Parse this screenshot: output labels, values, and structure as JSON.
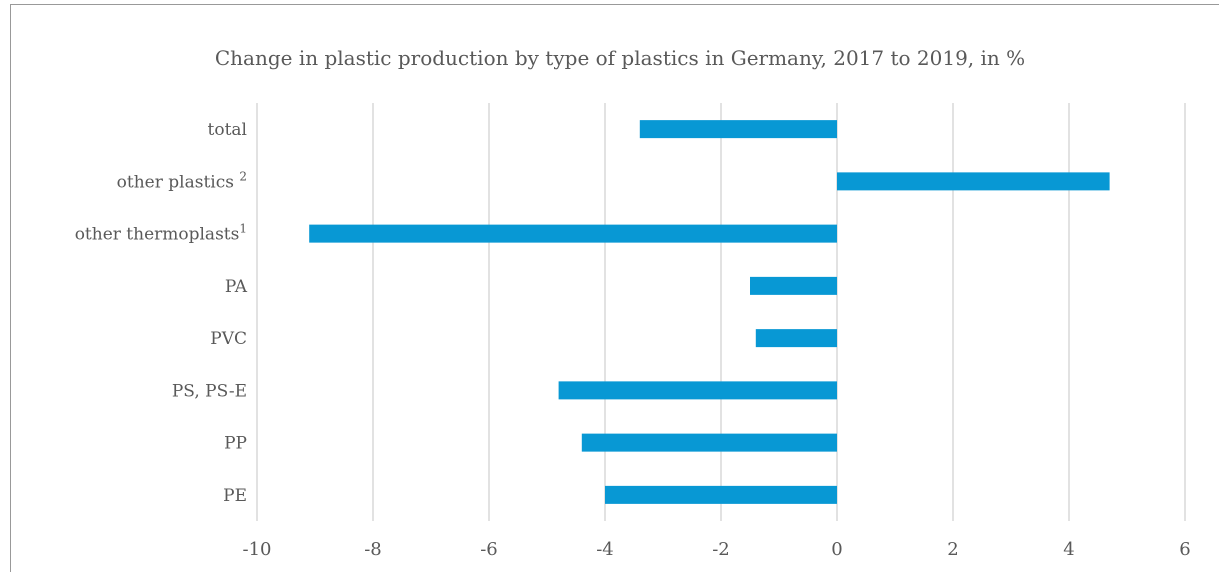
{
  "chart_data": {
    "type": "bar",
    "orientation": "horizontal",
    "title": "Change in plastic production by type of plastics in Germany, 2017 to 2019, in %",
    "categories": [
      {
        "label": "total",
        "sup": ""
      },
      {
        "label": "other plastics ",
        "sup": "2"
      },
      {
        "label": "other thermoplasts",
        "sup": "1"
      },
      {
        "label": "PA",
        "sup": ""
      },
      {
        "label": "PVC",
        "sup": ""
      },
      {
        "label": "PS, PS-E",
        "sup": ""
      },
      {
        "label": "PP",
        "sup": ""
      },
      {
        "label": "PE",
        "sup": ""
      }
    ],
    "values": [
      -3.4,
      4.7,
      -9.1,
      -1.5,
      -1.4,
      -4.8,
      -4.4,
      -4.0
    ],
    "xlim": [
      -10,
      6
    ],
    "xticks": [
      "-10",
      "-8",
      "-6",
      "-4",
      "-2",
      "0",
      "2",
      "4",
      "6"
    ],
    "xlabel": "",
    "ylabel": "",
    "grid": "vertical",
    "legend": "none",
    "colors": {
      "bar": "#0898d4",
      "grid": "#d9d9d9",
      "text": "#595959"
    }
  }
}
